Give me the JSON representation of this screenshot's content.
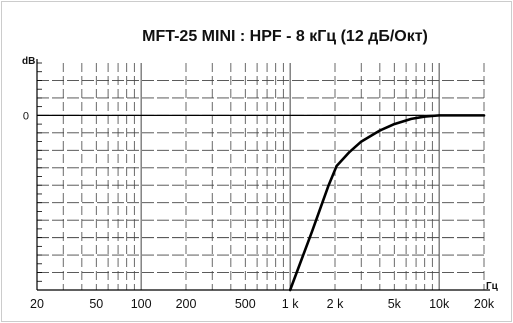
{
  "chart_data": {
    "type": "line",
    "title": "MFT-25 MINI : HPF - 8 кГц (12 дБ/Окт)",
    "ylabel": "dB",
    "xunit": "Гц",
    "x_scale": "log",
    "xlim": [
      20,
      20000
    ],
    "x_ticks": [
      {
        "value": 20,
        "label": "20"
      },
      {
        "value": 50,
        "label": "50"
      },
      {
        "value": 100,
        "label": "100"
      },
      {
        "value": 200,
        "label": "200"
      },
      {
        "value": 500,
        "label": "500"
      },
      {
        "value": 1000,
        "label": "1 k"
      },
      {
        "value": 2000,
        "label": "2 k"
      },
      {
        "value": 5000,
        "label": "5k"
      },
      {
        "value": 10000,
        "label": "10k"
      },
      {
        "value": 20000,
        "label": "20k"
      }
    ],
    "y_ticks": [
      {
        "value": 0,
        "label": "0"
      }
    ],
    "ylim": [
      -30,
      9
    ],
    "grid": true,
    "series": [
      {
        "color": "#000000",
        "x": [
          1000,
          1400,
          1800,
          2050,
          2500,
          3000,
          4000,
          5000,
          6500,
          8000,
          10000,
          15000,
          20000
        ],
        "y": [
          -30,
          -20,
          -12.2,
          -8.7,
          -6.3,
          -4.5,
          -2.6,
          -1.5,
          -0.6,
          -0.2,
          0,
          0,
          0
        ]
      }
    ],
    "colors": {
      "background": "#ffffff",
      "frame": "#cccccc",
      "grid": "#444444",
      "curve": "#000000",
      "axis": "#000000"
    }
  }
}
